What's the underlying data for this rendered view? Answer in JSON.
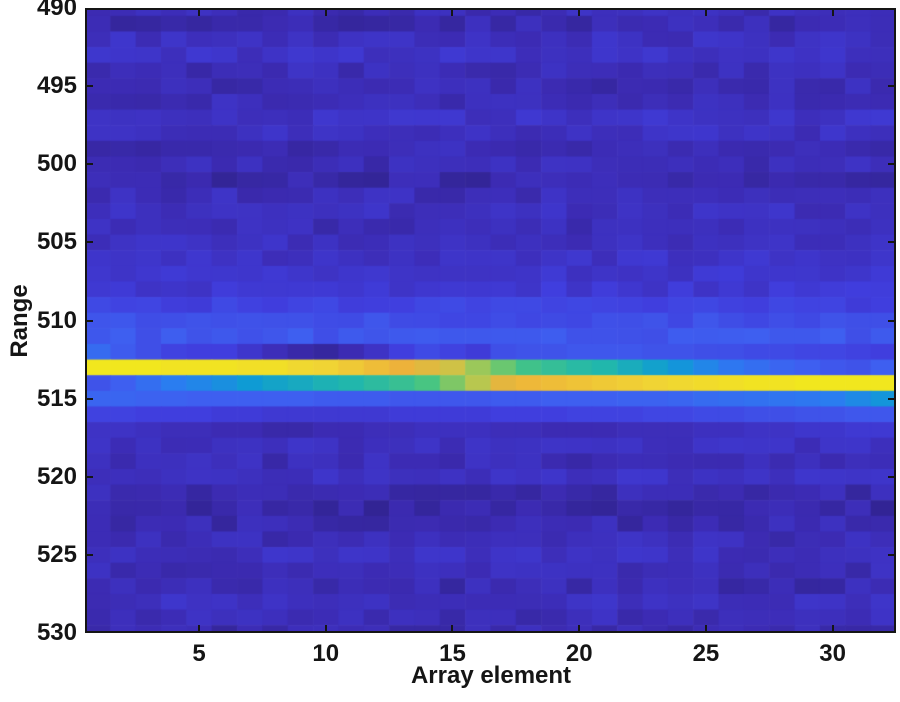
{
  "figure": {
    "background": "#ffffff",
    "axis_color": "#151515",
    "text_color": "#151515"
  },
  "chart_data": {
    "type": "heatmap",
    "title": "",
    "xlabel": "Array element",
    "ylabel": "Range",
    "x_ticks": [
      5,
      10,
      15,
      20,
      25,
      30
    ],
    "y_ticks": [
      490,
      495,
      500,
      505,
      510,
      515,
      520,
      525,
      530
    ],
    "x_range": [
      0.5,
      32.5
    ],
    "y_range": [
      490,
      530
    ],
    "y_axis_reversed": true,
    "n_cols": 32,
    "row_start": 490,
    "grid": false,
    "legend": "none",
    "value_semantics": "normalized echo amplitude 0-1 (parula colormap), bright return band near range 513 on left elements shifting to range 514 on right elements",
    "colormap": {
      "name": "parula",
      "stops": [
        [
          0.0,
          "#2b2080"
        ],
        [
          0.05,
          "#3c2bb3"
        ],
        [
          0.12,
          "#403ede"
        ],
        [
          0.2,
          "#3e5ff0"
        ],
        [
          0.3,
          "#2a7df0"
        ],
        [
          0.4,
          "#0f9bd4"
        ],
        [
          0.5,
          "#21b7ac"
        ],
        [
          0.6,
          "#48c582"
        ],
        [
          0.7,
          "#8cc85f"
        ],
        [
          0.78,
          "#c6c64a"
        ],
        [
          0.87,
          "#edb23a"
        ],
        [
          0.93,
          "#f0d434"
        ],
        [
          1.0,
          "#f2ee15"
        ]
      ]
    },
    "noise_amp": 0.022,
    "row_base": [
      0.06,
      0.05,
      0.07,
      0.08,
      0.06,
      0.055,
      0.06,
      0.08,
      0.07,
      0.055,
      0.06,
      0.045,
      0.06,
      0.07,
      0.06,
      0.07,
      0.08,
      0.09,
      0.1,
      0.13,
      0.16,
      0.18,
      0,
      0,
      0,
      0,
      0,
      0,
      0.07,
      0.06,
      0.075,
      0.05,
      0.04,
      0.05,
      0.06,
      0.07,
      0.06,
      0.05,
      0.07,
      0.06,
      0.05
    ],
    "band_rows": {
      "512": [
        0.24,
        0.19,
        0.16,
        0.13,
        0.12,
        0.12,
        0.09,
        0.06,
        0.04,
        0.03,
        0.05,
        0.08,
        0.12,
        0.15,
        0.13,
        0.11,
        0.16,
        0.17,
        0.17,
        0.18,
        0.18,
        0.18,
        0.17,
        0.17,
        0.16,
        0.16,
        0.15,
        0.15,
        0.14,
        0.14,
        0.13,
        0.12
      ],
      "513": [
        0.98,
        0.98,
        0.98,
        0.97,
        0.97,
        0.97,
        0.96,
        0.96,
        0.94,
        0.93,
        0.91,
        0.89,
        0.87,
        0.84,
        0.8,
        0.72,
        0.65,
        0.58,
        0.55,
        0.52,
        0.5,
        0.46,
        0.42,
        0.38,
        0.33,
        0.28,
        0.25,
        0.22,
        0.2,
        0.18,
        0.17,
        0.2
      ],
      "514": [
        0.17,
        0.2,
        0.25,
        0.3,
        0.33,
        0.36,
        0.4,
        0.43,
        0.45,
        0.48,
        0.5,
        0.53,
        0.56,
        0.6,
        0.68,
        0.76,
        0.85,
        0.88,
        0.89,
        0.9,
        0.91,
        0.92,
        0.93,
        0.94,
        0.95,
        0.96,
        0.97,
        0.97,
        0.98,
        0.98,
        0.98,
        0.98
      ],
      "515": [
        0.22,
        0.22,
        0.21,
        0.21,
        0.2,
        0.2,
        0.2,
        0.2,
        0.2,
        0.19,
        0.19,
        0.19,
        0.18,
        0.18,
        0.18,
        0.18,
        0.19,
        0.19,
        0.2,
        0.2,
        0.2,
        0.21,
        0.21,
        0.22,
        0.24,
        0.25,
        0.26,
        0.27,
        0.28,
        0.3,
        0.34,
        0.38
      ],
      "516": [
        0.13,
        0.13,
        0.12,
        0.12,
        0.12,
        0.11,
        0.11,
        0.1,
        0.1,
        0.1,
        0.1,
        0.1,
        0.11,
        0.11,
        0.11,
        0.11,
        0.12,
        0.12,
        0.12,
        0.13,
        0.13,
        0.13,
        0.14,
        0.14,
        0.15,
        0.15,
        0.16,
        0.16,
        0.17,
        0.17,
        0.18,
        0.18
      ],
      "517": [
        0.08,
        0.08,
        0.07,
        0.06,
        0.06,
        0.05,
        0.05,
        0.04,
        0.04,
        0.05,
        0.05,
        0.06,
        0.06,
        0.07,
        0.07,
        0.07,
        0.06,
        0.06,
        0.05,
        0.05,
        0.05,
        0.06,
        0.06,
        0.06,
        0.07,
        0.07,
        0.08,
        0.08,
        0.09,
        0.09,
        0.1,
        0.1
      ]
    }
  }
}
